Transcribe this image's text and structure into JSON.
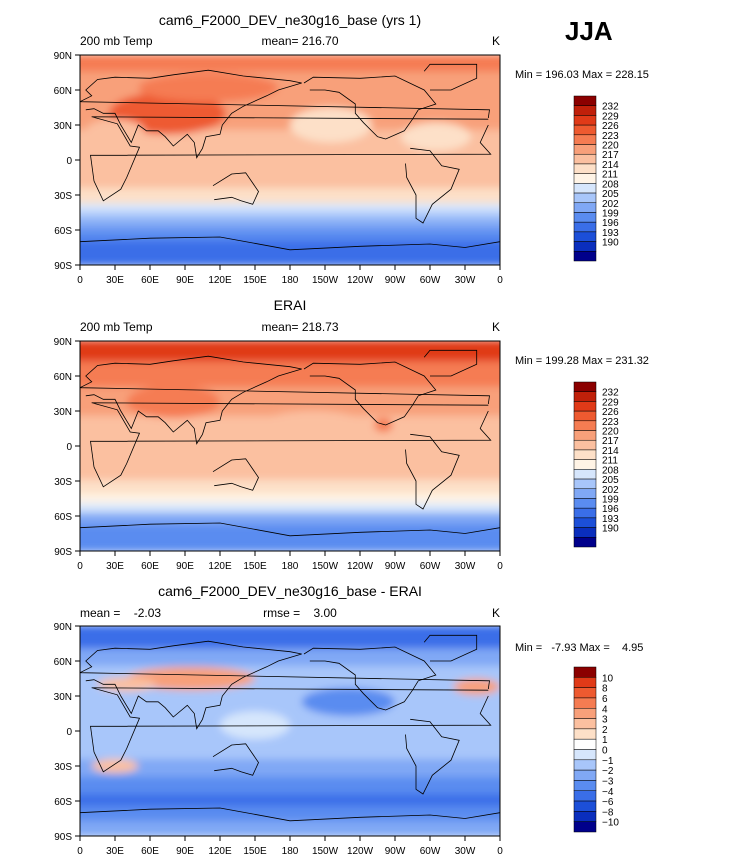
{
  "season": "JJA",
  "palettes": {
    "abs": [
      "#00008b",
      "#0a2ebd",
      "#1c4fd8",
      "#3a6ee8",
      "#5a8cf0",
      "#80a8f5",
      "#a8c6fa",
      "#d6e6fc",
      "#fff4e6",
      "#fde0c8",
      "#fbc0a0",
      "#f8a07a",
      "#f57c52",
      "#ee5a30",
      "#e03a18",
      "#c0200a",
      "#8b0000"
    ],
    "diff": [
      "#00008b",
      "#0a2ebd",
      "#1c4fd8",
      "#3a6ee8",
      "#5a8cf0",
      "#80a8f5",
      "#a8c6fa",
      "#d6e6fc",
      "#ffffff",
      "#fde0c8",
      "#fbc0a0",
      "#f8a07a",
      "#f57c52",
      "#ee5a30",
      "#e03a18",
      "#8b0000"
    ]
  },
  "chart_data": [
    {
      "type": "heatmap",
      "id": "model",
      "title": "cam6_F2000_DEV_ne30g16_base (yrs 1)",
      "left_label": "200 mb Temp",
      "center_label": "mean= 216.70",
      "units": "K",
      "minmax": "Min = 196.03 Max = 228.15",
      "x_ticks": [
        "0",
        "30E",
        "60E",
        "90E",
        "120E",
        "150E",
        "180",
        "150W",
        "120W",
        "90W",
        "60W",
        "30W",
        "0"
      ],
      "y_ticks": [
        "90N",
        "60N",
        "30N",
        "0",
        "30S",
        "60S",
        "90S"
      ],
      "colorbar_labels": [
        "232",
        "229",
        "226",
        "223",
        "220",
        "217",
        "214",
        "211",
        "208",
        "205",
        "202",
        "199",
        "196",
        "193",
        "190"
      ],
      "bands": [
        {
          "lat_from": 90,
          "lat_to": 75,
          "value": 224
        },
        {
          "lat_from": 75,
          "lat_to": 55,
          "value": 222
        },
        {
          "lat_from": 55,
          "lat_to": 25,
          "value": 221
        },
        {
          "lat_from": 25,
          "lat_to": 5,
          "value": 218
        },
        {
          "lat_from": 5,
          "lat_to": -25,
          "value": 217
        },
        {
          "lat_from": -25,
          "lat_to": -38,
          "value": 214
        },
        {
          "lat_from": -38,
          "lat_to": -45,
          "value": 210
        },
        {
          "lat_from": -45,
          "lat_to": -52,
          "value": 207
        },
        {
          "lat_from": -52,
          "lat_to": -60,
          "value": 203
        },
        {
          "lat_from": -60,
          "lat_to": -70,
          "value": 200
        },
        {
          "lat_from": -70,
          "lat_to": -90,
          "value": 197
        }
      ],
      "blobs": [
        {
          "lon": 75,
          "lat": 40,
          "rlon": 50,
          "rlat": 18,
          "value": 227
        },
        {
          "lon": 110,
          "lat": 62,
          "rlon": 60,
          "rlat": 12,
          "value": 225
        },
        {
          "lon": 215,
          "lat": 30,
          "rlon": 35,
          "rlat": 15,
          "value": 216
        },
        {
          "lon": 305,
          "lat": 20,
          "rlon": 30,
          "rlat": 12,
          "value": 214
        },
        {
          "lon": 30,
          "lat": 25,
          "rlon": 25,
          "rlat": 10,
          "value": 218
        }
      ]
    },
    {
      "type": "heatmap",
      "id": "obs",
      "title": "ERAI",
      "left_label": "200 mb Temp",
      "center_label": "mean= 218.73",
      "units": "K",
      "minmax": "Min = 199.28 Max = 231.32",
      "x_ticks": [
        "0",
        "30E",
        "60E",
        "90E",
        "120E",
        "150E",
        "180",
        "150W",
        "120W",
        "90W",
        "60W",
        "30W",
        "0"
      ],
      "y_ticks": [
        "90N",
        "60N",
        "30N",
        "0",
        "30S",
        "60S",
        "90S"
      ],
      "colorbar_labels": [
        "232",
        "229",
        "226",
        "223",
        "220",
        "217",
        "214",
        "211",
        "208",
        "205",
        "202",
        "199",
        "196",
        "193",
        "190"
      ],
      "bands": [
        {
          "lat_from": 90,
          "lat_to": 72,
          "value": 229
        },
        {
          "lat_from": 72,
          "lat_to": 50,
          "value": 225
        },
        {
          "lat_from": 50,
          "lat_to": 25,
          "value": 222
        },
        {
          "lat_from": 25,
          "lat_to": -30,
          "value": 218
        },
        {
          "lat_from": -30,
          "lat_to": -42,
          "value": 216
        },
        {
          "lat_from": -42,
          "lat_to": -50,
          "value": 213
        },
        {
          "lat_from": -50,
          "lat_to": -58,
          "value": 208
        },
        {
          "lat_from": -58,
          "lat_to": -68,
          "value": 203
        },
        {
          "lat_from": -68,
          "lat_to": -90,
          "value": 201
        }
      ],
      "blobs": [
        {
          "lon": 80,
          "lat": 38,
          "rlon": 40,
          "rlat": 14,
          "value": 224
        },
        {
          "lon": 200,
          "lat": 15,
          "rlon": 50,
          "rlat": 15,
          "value": 218
        },
        {
          "lon": 260,
          "lat": 18,
          "rlon": 8,
          "rlat": 6,
          "value": 223
        }
      ]
    },
    {
      "type": "heatmap",
      "id": "diff",
      "title": "cam6_F2000_DEV_ne30g16_base - ERAI",
      "left_label": "mean =    -2.03",
      "center_label": "rmse =    3.00",
      "units": "K",
      "minmax": "Min =   -7.93 Max =    4.95",
      "x_ticks": [
        "0",
        "30E",
        "60E",
        "90E",
        "120E",
        "150E",
        "180",
        "150W",
        "120W",
        "90W",
        "60W",
        "30W",
        "0"
      ],
      "y_ticks": [
        "90N",
        "60N",
        "30N",
        "0",
        "30S",
        "60S",
        "90S"
      ],
      "colorbar_labels": [
        "10",
        "8",
        "6",
        "4",
        "3",
        "2",
        "1",
        "0",
        "−1",
        "−2",
        "−3",
        "−4",
        "−6",
        "−8",
        "−10"
      ],
      "bands": [
        {
          "lat_from": 90,
          "lat_to": 70,
          "value": -5
        },
        {
          "lat_from": 70,
          "lat_to": 55,
          "value": -3
        },
        {
          "lat_from": 55,
          "lat_to": 25,
          "value": -1.5
        },
        {
          "lat_from": 25,
          "lat_to": -25,
          "value": -1.5
        },
        {
          "lat_from": -25,
          "lat_to": -40,
          "value": -2.5
        },
        {
          "lat_from": -40,
          "lat_to": -55,
          "value": -3.5
        },
        {
          "lat_from": -55,
          "lat_to": -65,
          "value": -5
        },
        {
          "lat_from": -65,
          "lat_to": -78,
          "value": -3.5
        },
        {
          "lat_from": -78,
          "lat_to": -90,
          "value": -2.5
        }
      ],
      "blobs": [
        {
          "lon": 95,
          "lat": 45,
          "rlon": 55,
          "rlat": 10,
          "value": 3.5
        },
        {
          "lon": 40,
          "lat": 40,
          "rlon": 25,
          "rlat": 6,
          "value": 2.5
        },
        {
          "lon": 340,
          "lat": 38,
          "rlon": 20,
          "rlat": 7,
          "value": 3
        },
        {
          "lon": 30,
          "lat": -30,
          "rlon": 20,
          "rlat": 6,
          "value": 2.5
        },
        {
          "lon": 150,
          "lat": 5,
          "rlon": 30,
          "rlat": 12,
          "value": -0.5
        },
        {
          "lon": 230,
          "lat": 25,
          "rlon": 40,
          "rlat": 12,
          "value": -3.5
        }
      ]
    }
  ]
}
